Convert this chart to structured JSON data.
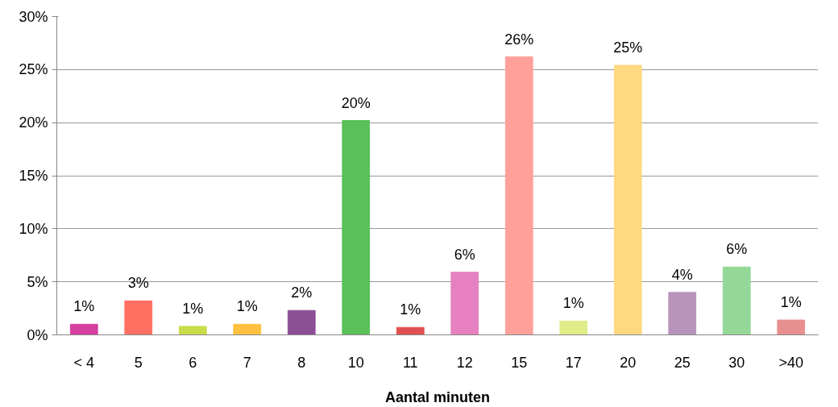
{
  "chart_data": {
    "type": "bar",
    "xlabel": "Aantal minuten",
    "categories": [
      "< 4",
      "5",
      "6",
      "7",
      "8",
      "10",
      "11",
      "12",
      "15",
      "17",
      "20",
      "25",
      "30",
      ">40"
    ],
    "values": [
      1.0,
      3.2,
      0.8,
      1.0,
      2.3,
      20.2,
      0.7,
      5.9,
      26.2,
      1.3,
      25.4,
      4.0,
      6.4,
      1.4
    ],
    "value_labels": [
      "1%",
      "3%",
      "1%",
      "1%",
      "2%",
      "20%",
      "1%",
      "6%",
      "26%",
      "1%",
      "25%",
      "4%",
      "6%",
      "1%"
    ],
    "colors": [
      "#d63fa0",
      "#ff6f61",
      "#c8dc4a",
      "#ffc040",
      "#8c4f96",
      "#5ac05a",
      "#e05050",
      "#e680c0",
      "#ffa09a",
      "#e0ec88",
      "#ffd880",
      "#b894bc",
      "#94d898",
      "#e89090"
    ],
    "ylim": [
      0,
      30
    ],
    "yticks": [
      {
        "value": 0,
        "label": "0%"
      },
      {
        "value": 5,
        "label": "5%"
      },
      {
        "value": 10,
        "label": "10%"
      },
      {
        "value": 15,
        "label": "15%"
      },
      {
        "value": 20,
        "label": "20%"
      },
      {
        "value": 25,
        "label": "25%"
      },
      {
        "value": 30,
        "label": "30%"
      }
    ],
    "grid": "y"
  }
}
